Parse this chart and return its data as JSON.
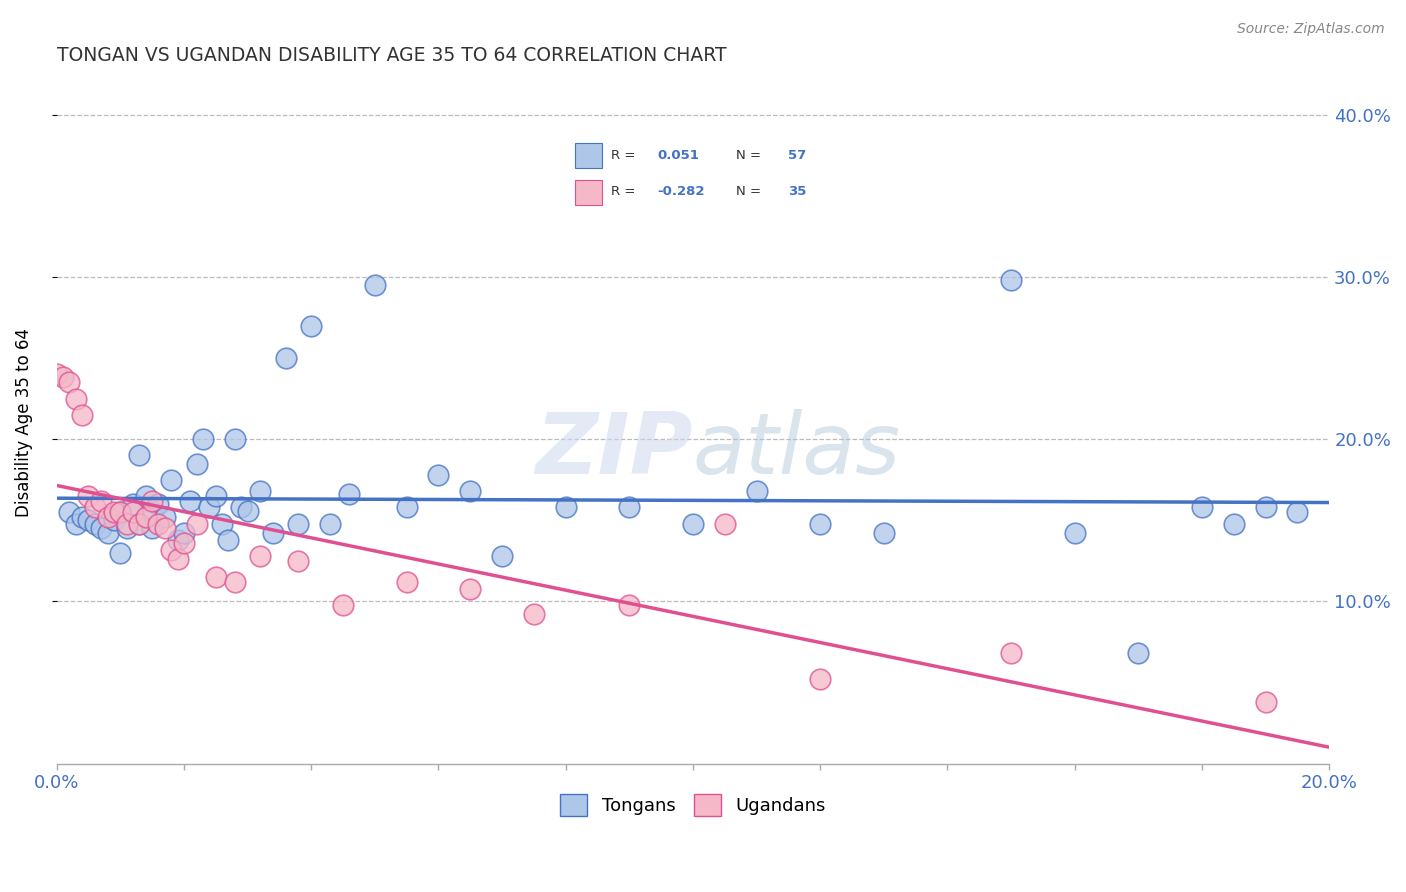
{
  "title": "TONGAN VS UGANDAN DISABILITY AGE 35 TO 64 CORRELATION CHART",
  "source": "Source: ZipAtlas.com",
  "ylabel": "Disability Age 35 to 64",
  "xmin": 0.0,
  "xmax": 0.2,
  "ymin": 0.0,
  "ymax": 0.42,
  "yticks": [
    0.1,
    0.2,
    0.3,
    0.4
  ],
  "ytick_labels": [
    "10.0%",
    "20.0%",
    "30.0%",
    "40.0%"
  ],
  "tongan_R": 0.051,
  "tongan_N": 57,
  "ugandan_R": -0.282,
  "ugandan_N": 35,
  "tongan_color": "#aec6e8",
  "ugandan_color": "#f4b8c8",
  "tongan_line_color": "#4472c4",
  "ugandan_line_color": "#e05090",
  "legend_label_1": "Tongans",
  "legend_label_2": "Ugandans",
  "background_color": "#ffffff",
  "tongan_x": [
    0.002,
    0.003,
    0.004,
    0.005,
    0.006,
    0.007,
    0.008,
    0.009,
    0.01,
    0.01,
    0.011,
    0.012,
    0.013,
    0.013,
    0.014,
    0.015,
    0.015,
    0.016,
    0.017,
    0.018,
    0.019,
    0.02,
    0.021,
    0.022,
    0.023,
    0.024,
    0.025,
    0.026,
    0.027,
    0.028,
    0.029,
    0.03,
    0.032,
    0.034,
    0.036,
    0.038,
    0.04,
    0.043,
    0.046,
    0.05,
    0.055,
    0.06,
    0.065,
    0.07,
    0.08,
    0.09,
    0.1,
    0.11,
    0.12,
    0.13,
    0.15,
    0.16,
    0.17,
    0.18,
    0.185,
    0.19,
    0.195
  ],
  "tongan_y": [
    0.155,
    0.148,
    0.152,
    0.15,
    0.148,
    0.145,
    0.142,
    0.15,
    0.155,
    0.13,
    0.145,
    0.16,
    0.19,
    0.148,
    0.165,
    0.155,
    0.145,
    0.16,
    0.152,
    0.175,
    0.138,
    0.142,
    0.162,
    0.185,
    0.2,
    0.158,
    0.165,
    0.148,
    0.138,
    0.2,
    0.158,
    0.156,
    0.168,
    0.142,
    0.25,
    0.148,
    0.27,
    0.148,
    0.166,
    0.295,
    0.158,
    0.178,
    0.168,
    0.128,
    0.158,
    0.158,
    0.148,
    0.168,
    0.148,
    0.142,
    0.298,
    0.142,
    0.068,
    0.158,
    0.148,
    0.158,
    0.155
  ],
  "ugandan_x": [
    0.0,
    0.001,
    0.002,
    0.003,
    0.004,
    0.005,
    0.006,
    0.007,
    0.008,
    0.009,
    0.01,
    0.011,
    0.012,
    0.013,
    0.014,
    0.015,
    0.016,
    0.017,
    0.018,
    0.019,
    0.02,
    0.022,
    0.025,
    0.028,
    0.032,
    0.038,
    0.045,
    0.055,
    0.065,
    0.075,
    0.09,
    0.105,
    0.12,
    0.15,
    0.19
  ],
  "ugandan_y": [
    0.24,
    0.238,
    0.235,
    0.225,
    0.215,
    0.165,
    0.158,
    0.162,
    0.152,
    0.155,
    0.155,
    0.148,
    0.155,
    0.148,
    0.152,
    0.162,
    0.148,
    0.145,
    0.132,
    0.126,
    0.136,
    0.148,
    0.115,
    0.112,
    0.128,
    0.125,
    0.098,
    0.112,
    0.108,
    0.092,
    0.098,
    0.148,
    0.052,
    0.068,
    0.038
  ]
}
